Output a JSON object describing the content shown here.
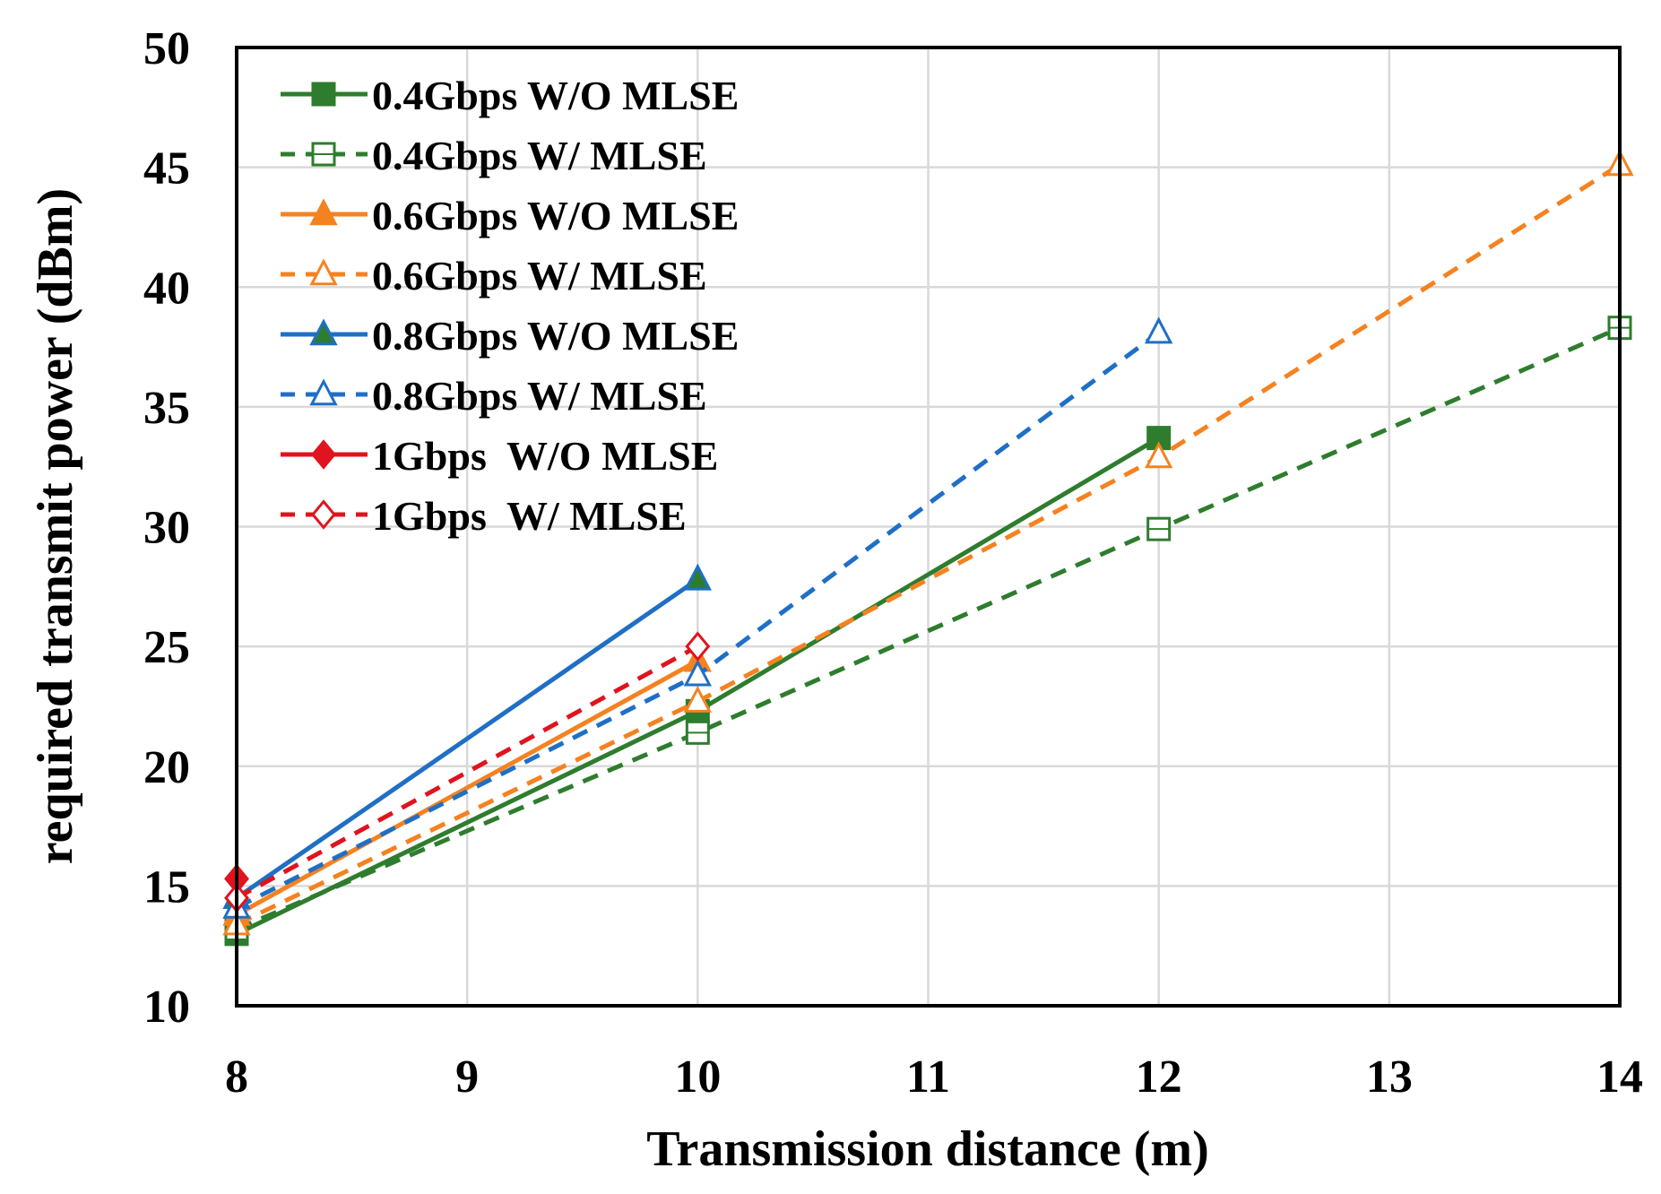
{
  "chart_data": {
    "type": "line",
    "title": "",
    "xlabel": "Transmission distance (m)",
    "ylabel": "required  transmit power (dBm)",
    "xlim": [
      8,
      14
    ],
    "ylim": [
      10,
      50
    ],
    "xticks": [
      "8",
      "9",
      "10",
      "11",
      "12",
      "13",
      "14"
    ],
    "yticks": [
      "10",
      "15",
      "20",
      "25",
      "30",
      "35",
      "40",
      "45",
      "50"
    ],
    "grid": true,
    "legend_position": "top-left",
    "series": [
      {
        "name": "0.4Gbps W/O MLSE",
        "color": "#2e7d2e",
        "dash": false,
        "marker": "square",
        "filled": true,
        "x": [
          8,
          10,
          12
        ],
        "y": [
          13.0,
          22.3,
          33.7
        ]
      },
      {
        "name": "0.4Gbps W/ MLSE",
        "color": "#2e7d2e",
        "dash": true,
        "marker": "square",
        "filled": false,
        "x": [
          8,
          10,
          12,
          14
        ],
        "y": [
          13.2,
          21.4,
          29.9,
          38.3
        ]
      },
      {
        "name": "0.6Gbps W/O MLSE",
        "color": "#f58220",
        "dash": false,
        "marker": "triangle",
        "filled": true,
        "x": [
          8,
          10
        ],
        "y": [
          13.8,
          24.4
        ]
      },
      {
        "name": "0.6Gbps W/ MLSE",
        "color": "#f58220",
        "dash": true,
        "marker": "triangle",
        "filled": false,
        "x": [
          8,
          10,
          12,
          14
        ],
        "y": [
          13.4,
          22.7,
          32.9,
          45.1
        ]
      },
      {
        "name": "0.8Gbps W/O MLSE",
        "color": "#1f6fc5",
        "dash": false,
        "marker": "triangle",
        "filled": true,
        "markerFill": "#2e7d2e",
        "x": [
          8,
          10
        ],
        "y": [
          14.5,
          27.8
        ]
      },
      {
        "name": "0.8Gbps W/ MLSE",
        "color": "#1f6fc5",
        "dash": true,
        "marker": "triangle",
        "filled": false,
        "x": [
          8,
          10,
          12
        ],
        "y": [
          14.1,
          23.8,
          38.1
        ]
      },
      {
        "name": "1Gbps  W/O MLSE",
        "color": "#e0141e",
        "dash": false,
        "marker": "diamond",
        "filled": true,
        "x": [
          8
        ],
        "y": [
          15.3
        ]
      },
      {
        "name": "1Gbps  W/ MLSE",
        "color": "#e0141e",
        "dash": true,
        "marker": "diamond",
        "filled": false,
        "x": [
          8,
          10
        ],
        "y": [
          14.5,
          25.0
        ]
      }
    ]
  }
}
